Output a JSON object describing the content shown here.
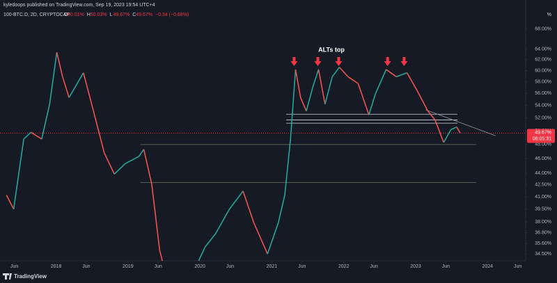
{
  "header": {
    "publisher": "kyledoops published on TradingView.com, Sep 19, 2023 19:54 UTC+4",
    "symbol": "100-BTC.D, 2D, CRYPTOCAP",
    "ohlc": [
      {
        "label": "O",
        "value": "50.01%"
      },
      {
        "label": "H",
        "value": "50.03%"
      },
      {
        "label": "L",
        "value": "49.67%"
      },
      {
        "label": "C",
        "value": "49.67%"
      },
      {
        "label": "",
        "value": "−0.34 (−0.68%)"
      }
    ],
    "unit": "%",
    "brand": "TradingView"
  },
  "chart_data": {
    "type": "line",
    "annotation": "ALTs top",
    "log_scale": true,
    "grid": false,
    "up_color": "#26a69a",
    "down_color": "#ef5350",
    "x": [
      2017.31,
      2017.41,
      2017.55,
      2017.65,
      2017.8,
      2017.91,
      2018.01,
      2018.09,
      2018.18,
      2018.38,
      2018.52,
      2018.67,
      2018.81,
      2018.96,
      2019.15,
      2019.22,
      2019.33,
      2019.44,
      2019.54,
      2019.83,
      2020.07,
      2020.22,
      2020.41,
      2020.6,
      2020.75,
      2020.94,
      2021.09,
      2021.18,
      2021.26,
      2021.33,
      2021.4,
      2021.48,
      2021.57,
      2021.65,
      2021.74,
      2021.84,
      2021.94,
      2022.06,
      2022.2,
      2022.35,
      2022.44,
      2022.59,
      2022.73,
      2022.88,
      2023.02,
      2023.17,
      2023.27,
      2023.39,
      2023.49,
      2023.57,
      2023.62
    ],
    "values": [
      41.2,
      39.5,
      48.8,
      49.8,
      48.8,
      54.2,
      63.4,
      58.9,
      55.3,
      59.6,
      53.1,
      46.8,
      43.9,
      45.3,
      46.3,
      47.3,
      42.6,
      34.9,
      32.0,
      31.5,
      35.2,
      36.7,
      39.5,
      41.7,
      37.9,
      34.5,
      37.9,
      41.2,
      48.8,
      60.2,
      55.3,
      53.1,
      57.1,
      60.2,
      54.2,
      58.9,
      60.6,
      58.9,
      57.7,
      52.5,
      55.9,
      60.2,
      58.9,
      59.6,
      56.5,
      53.1,
      51.7,
      48.3,
      50.2,
      50.6,
      49.7
    ],
    "xlim": [
      2017.22,
      2024.53
    ],
    "ylim": [
      33.8,
      72.7
    ],
    "xticks": [
      {
        "value": 2017.42,
        "label": "Jun"
      },
      2018,
      {
        "value": 2018.42,
        "label": "Jun"
      },
      2019,
      {
        "value": 2019.42,
        "label": "Jun"
      },
      2020,
      {
        "value": 2020.42,
        "label": "Jun"
      },
      2021,
      {
        "value": 2021.42,
        "label": "Jun"
      },
      2022,
      {
        "value": 2022.42,
        "label": "Jun"
      },
      2023,
      {
        "value": 2023.42,
        "label": "Jun"
      },
      2024,
      {
        "value": 2024.42,
        "label": "Jun"
      }
    ],
    "yticks": [
      {
        "value": 68,
        "label": "68.00%"
      },
      {
        "value": 64,
        "label": "64.00%"
      },
      {
        "value": 62,
        "label": "62.00%"
      },
      {
        "value": 60,
        "label": "60.00%"
      },
      {
        "value": 58,
        "label": "58.00%"
      },
      {
        "value": 56,
        "label": "56.00%"
      },
      {
        "value": 54,
        "label": "54.00%"
      },
      {
        "value": 52,
        "label": "52.00%"
      },
      {
        "value": 50,
        "label": "50.00%"
      },
      {
        "value": 48,
        "label": "48.00%"
      },
      {
        "value": 46,
        "label": "46.00%"
      },
      {
        "value": 44,
        "label": "44.00%"
      },
      {
        "value": 42.5,
        "label": "42.50%"
      },
      {
        "value": 41,
        "label": "41.00%"
      },
      {
        "value": 39.5,
        "label": "39.50%"
      },
      {
        "value": 38,
        "label": "38.00%"
      },
      {
        "value": 36.8,
        "label": "36.80%"
      },
      {
        "value": 35.6,
        "label": "35.60%"
      },
      {
        "value": 34.5,
        "label": "34.50%"
      }
    ],
    "levels": [
      {
        "value": 52.6,
        "x": [
          2021.2,
          2023.58
        ],
        "color": "#d1d4dc"
      },
      {
        "value": 51.7,
        "x": [
          2021.2,
          2023.58
        ],
        "color": "#d1d4dc"
      },
      {
        "value": 51.2,
        "x": [
          2021.2,
          2023.58
        ],
        "color": "#d1d4dc"
      },
      {
        "value": 48.0,
        "x": [
          2019.17,
          2023.84
        ],
        "color": "#6b7a5e"
      },
      {
        "value": 42.8,
        "x": [
          2019.17,
          2023.84
        ],
        "color": "#6b7a5e"
      }
    ],
    "trendline": {
      "x": [
        2023.14,
        2024.11
      ],
      "values": [
        53.3,
        49.3
      ],
      "color": "#9598a1"
    },
    "arrows": [
      2021.31,
      2021.64,
      2021.93,
      2022.61,
      2022.84
    ],
    "arrow_color": "#f23645",
    "last_price": {
      "value": 49.67,
      "label": "49.67%"
    },
    "countdown": "08:05:31",
    "last_color": "#f23645"
  }
}
